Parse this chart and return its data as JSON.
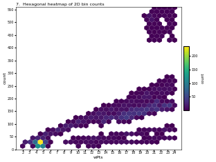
{
  "title": "7.  Hexagonal heatmap of 2D bin counts",
  "xlabel": "wPts",
  "ylabel": "count",
  "xlim": [
    1,
    25
  ],
  "ylim": [
    0,
    560
  ],
  "colorbar_label": "count",
  "cmap": "viridis",
  "background_color": "#ffffff",
  "gridsize": 30,
  "seed": 7
}
